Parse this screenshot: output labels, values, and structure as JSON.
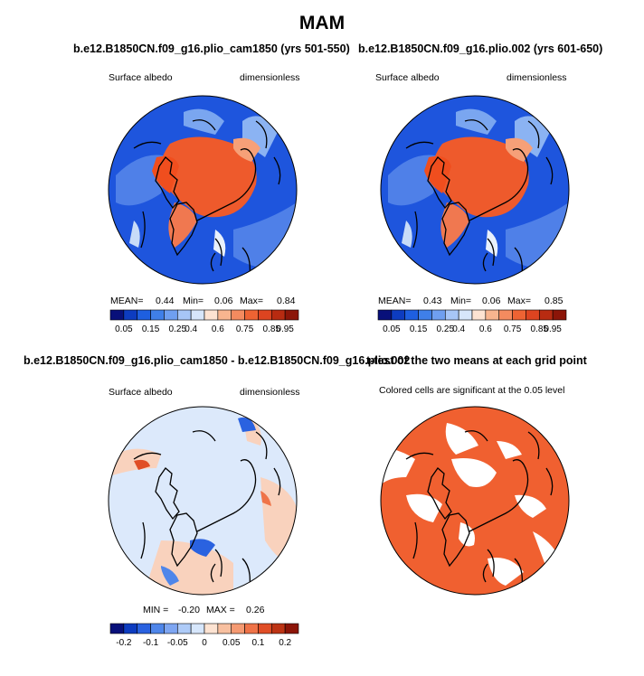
{
  "figure": {
    "title": "MAM"
  },
  "chart_data": [
    {
      "type": "heatmap",
      "title": "b.e12.B1850CN.f09_g16.plio_cam1850 (yrs 501-550)",
      "left_label": "Surface albedo",
      "right_label": "dimensionless",
      "stats": {
        "mean_label": "MEAN=",
        "mean": "0.44",
        "min_label": "Min=",
        "min": "0.06",
        "max_label": "Max=",
        "max": "0.84"
      },
      "colorbar": {
        "colors": [
          "#08107a",
          "#0d3cc0",
          "#1e5fe0",
          "#3f7fe8",
          "#6f9ff0",
          "#a7c6f7",
          "#d7e6fa",
          "#fde3d2",
          "#f8b58f",
          "#f48b5f",
          "#ee6333",
          "#dd4420",
          "#b82b11",
          "#8c1508"
        ],
        "ticks": [
          "0.05",
          "0.15",
          "0.25",
          "0.4",
          "0.6",
          "0.75",
          "0.85",
          "0.95"
        ],
        "tick_positions": [
          1,
          3,
          5,
          6,
          8,
          10,
          12,
          13
        ]
      }
    },
    {
      "type": "heatmap",
      "title": "b.e12.B1850CN.f09_g16.plio.002 (yrs 601-650)",
      "left_label": "Surface albedo",
      "right_label": "dimensionless",
      "stats": {
        "mean_label": "MEAN=",
        "mean": "0.43",
        "min_label": "Min=",
        "min": "0.06",
        "max_label": "Max=",
        "max": "0.85"
      },
      "colorbar": {
        "colors": [
          "#08107a",
          "#0d3cc0",
          "#1e5fe0",
          "#3f7fe8",
          "#6f9ff0",
          "#a7c6f7",
          "#d7e6fa",
          "#fde3d2",
          "#f8b58f",
          "#f48b5f",
          "#ee6333",
          "#dd4420",
          "#b82b11",
          "#8c1508"
        ],
        "ticks": [
          "0.05",
          "0.15",
          "0.25",
          "0.4",
          "0.6",
          "0.75",
          "0.85",
          "0.95"
        ],
        "tick_positions": [
          1,
          3,
          5,
          6,
          8,
          10,
          12,
          13
        ]
      }
    },
    {
      "type": "heatmap",
      "title": "b.e12.B1850CN.f09_g16.plio_cam1850 - b.e12.B1850CN.f09_g16.plio.002",
      "left_label": "Surface albedo",
      "right_label": "dimensionless",
      "stats": {
        "min_label": "MIN =",
        "min": "-0.20",
        "max_label": "MAX =",
        "max": "0.26"
      },
      "colorbar": {
        "colors": [
          "#08107a",
          "#0d3cc0",
          "#2a62e0",
          "#4f86ea",
          "#7ea6f2",
          "#aecbf8",
          "#d6e6fb",
          "#fde3d2",
          "#f8c0a0",
          "#f59a72",
          "#ef7348",
          "#e04e26",
          "#bd3415",
          "#8c1508"
        ],
        "ticks": [
          "-0.2",
          "-0.1",
          "-0.05",
          "0",
          "0.05",
          "0.1",
          "0.2"
        ],
        "tick_positions": [
          1,
          3,
          5,
          7,
          9,
          11,
          13
        ]
      }
    },
    {
      "type": "heatmap",
      "title": "t-test of the two means at each grid point",
      "subtitle": "Colored cells are significant at the 0.05 level"
    }
  ],
  "colors": {
    "ice": "#ee5a2c",
    "ice_dark": "#f04e1e",
    "ocean": "#1e55dd",
    "ocean_light": "#4f80e8",
    "diff_bg": "#dce9fb",
    "diff_pos": "#f9d2bd",
    "sig": "#f06030"
  }
}
